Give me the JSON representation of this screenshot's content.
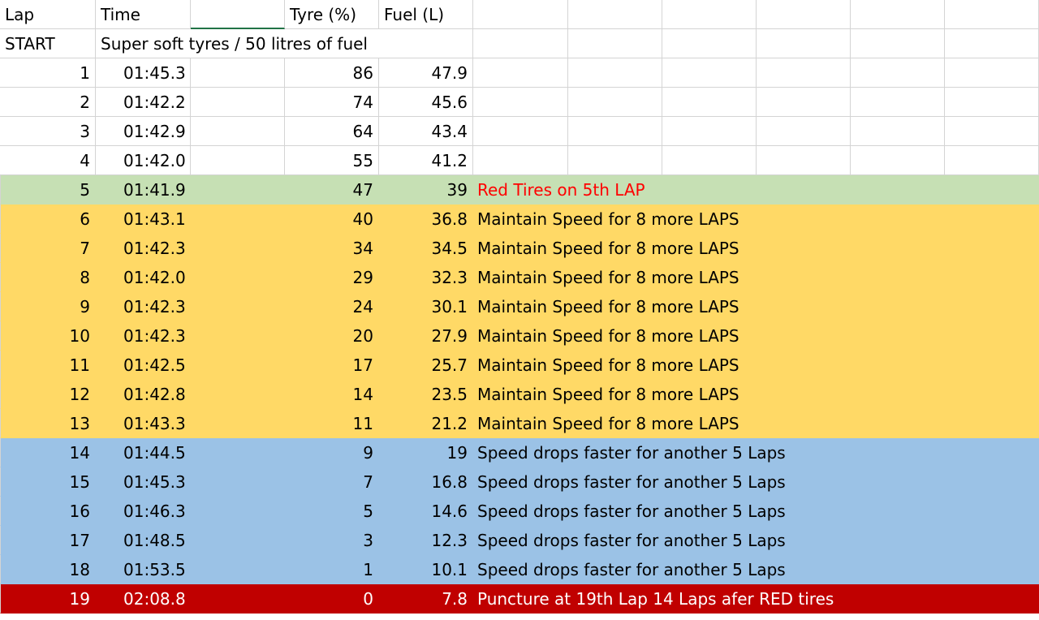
{
  "colors": {
    "grid": "#d4d4d4",
    "white": "#ffffff",
    "green": "#c6e0b4",
    "yellow": "#ffd966",
    "blue": "#9bc2e6",
    "red": "#c00000",
    "red_text": "#ff0000",
    "white_text": "#ffffff"
  },
  "header": {
    "lap": "Lap",
    "time": "Time",
    "tyre": "Tyre (%)",
    "fuel": "Fuel (L)"
  },
  "start_row": {
    "label": "START",
    "note": "Super soft tyres / 50 litres of fuel"
  },
  "laps": [
    {
      "lap": "1",
      "time": "01:45.3",
      "tyre": "86",
      "fuel": "47.9",
      "note": "",
      "band": "white"
    },
    {
      "lap": "2",
      "time": "01:42.2",
      "tyre": "74",
      "fuel": "45.6",
      "note": "",
      "band": "white"
    },
    {
      "lap": "3",
      "time": "01:42.9",
      "tyre": "64",
      "fuel": "43.4",
      "note": "",
      "band": "white"
    },
    {
      "lap": "4",
      "time": "01:42.0",
      "tyre": "55",
      "fuel": "41.2",
      "note": "",
      "band": "white"
    },
    {
      "lap": "5",
      "time": "01:41.9",
      "tyre": "47",
      "fuel": "39",
      "note": "Red Tires on 5th LAP",
      "band": "green"
    },
    {
      "lap": "6",
      "time": "01:43.1",
      "tyre": "40",
      "fuel": "36.8",
      "note": "Maintain Speed for 8 more LAPS",
      "band": "yellow"
    },
    {
      "lap": "7",
      "time": "01:42.3",
      "tyre": "34",
      "fuel": "34.5",
      "note": "Maintain Speed for 8 more LAPS",
      "band": "yellow"
    },
    {
      "lap": "8",
      "time": "01:42.0",
      "tyre": "29",
      "fuel": "32.3",
      "note": "Maintain Speed for 8 more LAPS",
      "band": "yellow"
    },
    {
      "lap": "9",
      "time": "01:42.3",
      "tyre": "24",
      "fuel": "30.1",
      "note": "Maintain Speed for 8 more LAPS",
      "band": "yellow"
    },
    {
      "lap": "10",
      "time": "01:42.3",
      "tyre": "20",
      "fuel": "27.9",
      "note": "Maintain Speed for 8 more LAPS",
      "band": "yellow"
    },
    {
      "lap": "11",
      "time": "01:42.5",
      "tyre": "17",
      "fuel": "25.7",
      "note": "Maintain Speed for 8 more LAPS",
      "band": "yellow"
    },
    {
      "lap": "12",
      "time": "01:42.8",
      "tyre": "14",
      "fuel": "23.5",
      "note": "Maintain Speed for 8 more LAPS",
      "band": "yellow"
    },
    {
      "lap": "13",
      "time": "01:43.3",
      "tyre": "11",
      "fuel": "21.2",
      "note": "Maintain Speed for 8 more LAPS",
      "band": "yellow"
    },
    {
      "lap": "14",
      "time": "01:44.5",
      "tyre": "9",
      "fuel": "19",
      "note": "Speed drops faster for another 5 Laps",
      "band": "blue"
    },
    {
      "lap": "15",
      "time": "01:45.3",
      "tyre": "7",
      "fuel": "16.8",
      "note": "Speed drops faster for another 5 Laps",
      "band": "blue"
    },
    {
      "lap": "16",
      "time": "01:46.3",
      "tyre": "5",
      "fuel": "14.6",
      "note": "Speed drops faster for another 5 Laps",
      "band": "blue"
    },
    {
      "lap": "17",
      "time": "01:48.5",
      "tyre": "3",
      "fuel": "12.3",
      "note": "Speed drops faster for another 5 Laps",
      "band": "blue"
    },
    {
      "lap": "18",
      "time": "01:53.5",
      "tyre": "1",
      "fuel": "10.1",
      "note": "Speed drops faster for another 5 Laps",
      "band": "blue"
    },
    {
      "lap": "19",
      "time": "02:08.8",
      "tyre": "0",
      "fuel": "7.8",
      "note": "Puncture at 19th Lap 14 Laps afer RED tires",
      "band": "red"
    }
  ]
}
